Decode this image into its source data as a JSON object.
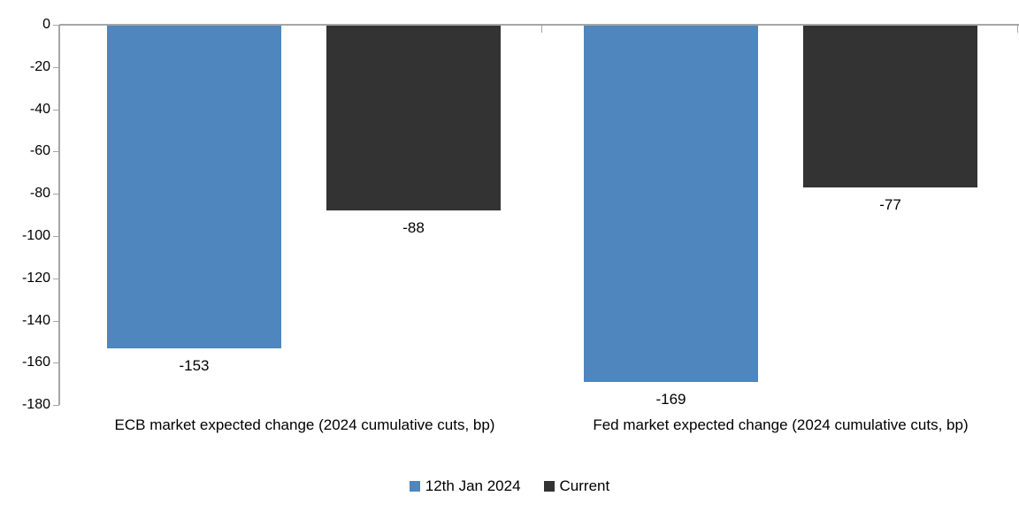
{
  "chart_data": {
    "type": "bar",
    "title": "",
    "xlabel": "",
    "ylabel": "",
    "categories": [
      "ECB market expected change (2024 cumulative cuts, bp)",
      "Fed market expected change (2024 cumulative cuts, bp)"
    ],
    "series": [
      {
        "name": "12th Jan 2024",
        "color": "#4e86bd",
        "values": [
          -153,
          -169
        ]
      },
      {
        "name": "Current",
        "color": "#333333",
        "values": [
          -88,
          -77
        ]
      }
    ],
    "ylim": [
      -180,
      0
    ],
    "yticks": [
      "0",
      "-20",
      "-40",
      "-60",
      "-80",
      "-100",
      "-120",
      "-140",
      "-160",
      "-180"
    ],
    "grid": false,
    "legend_position": "bottom",
    "data_labels": true,
    "axis_color": "#a6a6a6",
    "text_color": "#000000",
    "background_color": "#ffffff"
  }
}
